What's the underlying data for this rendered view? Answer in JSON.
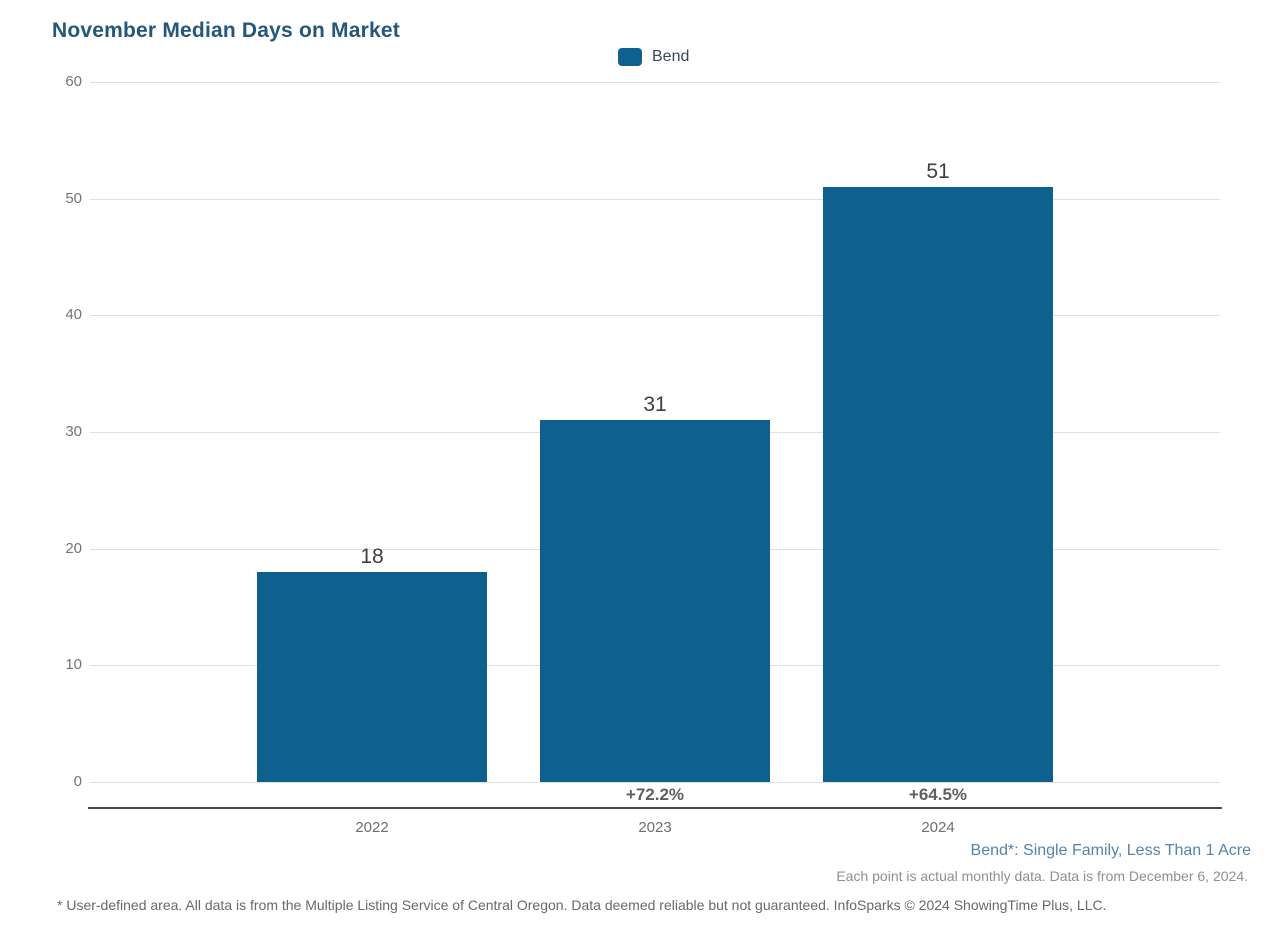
{
  "title": "November Median Days on Market",
  "legend": {
    "label": "Bend",
    "swatch_color": "#0e618f"
  },
  "chart_data": {
    "type": "bar",
    "title": "November Median Days on Market",
    "series_name": "Bend",
    "categories": [
      "2022",
      "2023",
      "2024"
    ],
    "values": [
      18,
      31,
      51
    ],
    "pct_change": [
      "",
      "+72.2%",
      "+64.5%"
    ],
    "ylim": [
      0,
      60
    ],
    "yticks": [
      0,
      10,
      20,
      30,
      40,
      50,
      60
    ],
    "xlabel": "",
    "ylabel": "",
    "grid": "horizontal-on",
    "legend_position": "top-center",
    "bar_color": "#0e618f"
  },
  "footnotes": {
    "segment_note": "Bend*: Single Family, Less Than 1 Acre",
    "data_note": "Each point is actual monthly data. Data is from December 6, 2024.",
    "disclaimer": "* User-defined area. All data is from the Multiple Listing Service of Central Oregon. Data deemed reliable but not guaranteed. InfoSparks © 2024 ShowingTime Plus, LLC."
  }
}
